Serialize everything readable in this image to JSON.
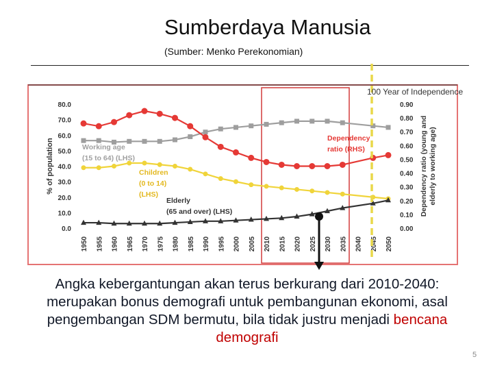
{
  "slide": {
    "title": "Sumberdaya Manusia",
    "subtitle": "(Sumber: Menko Perekonomian)",
    "caption_text": "Angka kebergantungan akan terus berkurang dari  2010-2040: merupakan bonus demografi untuk pembangunan ekonomi, asal pengembangan SDM bermutu, bila tidak justru menjadi ",
    "caption_highlight": "bencana demografi",
    "page_number": "5",
    "colors": {
      "frame": "#e57373",
      "highlight": "#c00000",
      "marker": "#e9d84a"
    }
  },
  "chart_data": {
    "type": "line",
    "x_ticks": [
      "1950",
      "1955",
      "1960",
      "1965",
      "1970",
      "1975",
      "1980",
      "1985",
      "1990",
      "1995",
      "2000",
      "2005",
      "2010",
      "2015",
      "2020",
      "2025",
      "2030",
      "2035",
      "2040",
      "2045",
      "2050"
    ],
    "ylabel_left": "% of population",
    "ylabel_right": "Dependency ratio (young and elderly to working age)",
    "ylim_left": [
      0,
      80
    ],
    "ylim_right": [
      0,
      0.9
    ],
    "yticks_left": [
      "0.0",
      "10.0",
      "20.0",
      "30.0",
      "40.0",
      "50.0",
      "60.0",
      "70.0",
      "80.0"
    ],
    "yticks_right": [
      "0.00",
      "0.10",
      "0.20",
      "0.30",
      "0.40",
      "0.50",
      "0.60",
      "0.70",
      "0.80",
      "0.90"
    ],
    "annotation": "100  Year of Independence",
    "series": [
      {
        "name": "Working age (15 to 64) (LHS)",
        "axis": "left",
        "color": "#9e9e9e",
        "marker": "square",
        "label_lines": [
          "Working age",
          "(15 to 64) (LHS)"
        ],
        "x": [
          1950,
          1955,
          1960,
          1965,
          1970,
          1975,
          1980,
          1985,
          1990,
          1995,
          2000,
          2005,
          2010,
          2015,
          2020,
          2025,
          2030,
          2035,
          2045,
          2050
        ],
        "values": [
          56.5,
          56.5,
          55.5,
          56,
          56,
          56,
          57,
          59,
          62,
          64,
          65,
          66,
          67,
          68,
          69,
          69,
          69,
          68,
          66,
          65
        ]
      },
      {
        "name": "Children (0 to 14) (LHS)",
        "axis": "left",
        "color": "#f0d43a",
        "marker": "circle",
        "label_lines": [
          "Children",
          "(0 to 14)",
          "(LHS)"
        ],
        "x": [
          1950,
          1955,
          1960,
          1965,
          1970,
          1975,
          1980,
          1985,
          1990,
          1995,
          2000,
          2005,
          2010,
          2015,
          2020,
          2025,
          2030,
          2035,
          2045,
          2050
        ],
        "values": [
          39,
          39,
          40,
          42,
          42,
          41,
          40,
          38,
          35,
          32,
          30,
          28,
          27,
          26,
          25,
          24,
          23,
          22,
          20,
          19
        ]
      },
      {
        "name": "Elderly (65 and over) (LHS)",
        "axis": "left",
        "color": "#333333",
        "marker": "triangle",
        "label_lines": [
          "Elderly",
          "(65 and over) (LHS)"
        ],
        "x": [
          1950,
          1955,
          1960,
          1965,
          1970,
          1975,
          1980,
          1985,
          1990,
          1995,
          2000,
          2005,
          2010,
          2015,
          2020,
          2025,
          2030,
          2035,
          2045,
          2050
        ],
        "values": [
          3.5,
          3.5,
          3,
          3,
          3,
          3,
          3.5,
          4,
          4.5,
          4.5,
          5,
          5.5,
          6,
          6.5,
          7.5,
          9,
          11,
          13,
          16,
          18
        ]
      },
      {
        "name": "Dependency ratio (RHS)",
        "axis": "right",
        "color": "#e53935",
        "marker": "circle",
        "label_lines": [
          "Dependency",
          "ratio (RHS)"
        ],
        "x": [
          1950,
          1955,
          1960,
          1965,
          1970,
          1975,
          1980,
          1985,
          1990,
          1995,
          2000,
          2005,
          2010,
          2015,
          2020,
          2025,
          2030,
          2035,
          2045,
          2050
        ],
        "values": [
          0.76,
          0.74,
          0.77,
          0.82,
          0.85,
          0.83,
          0.8,
          0.74,
          0.66,
          0.59,
          0.55,
          0.51,
          0.48,
          0.46,
          0.45,
          0.45,
          0.45,
          0.46,
          0.51,
          0.53
        ]
      }
    ]
  }
}
